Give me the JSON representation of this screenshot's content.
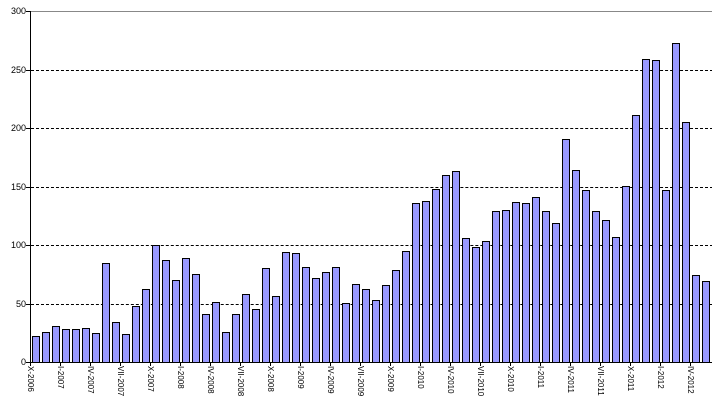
{
  "chart_data": {
    "type": "bar",
    "title": "",
    "xlabel": "",
    "ylabel": "",
    "legend": "none",
    "grid": "horizontal dashed black, solid gray line at 300 (top)",
    "ylim": [
      0,
      300
    ],
    "y_ticks": [
      0,
      50,
      100,
      150,
      200,
      250,
      300
    ],
    "bars_per_tick": 3,
    "x_tick_labels": [
      "X-2006",
      "I-2007",
      "IV-2007",
      "VII-2007",
      "X-2007",
      "I-2008",
      "IV-2008",
      "VII-2008",
      "X-2008",
      "I-2009",
      "IV-2009",
      "VII-2009",
      "X-2009",
      "I-2010",
      "IV-2010",
      "VII-2010",
      "X-2010",
      "I-2011",
      "IV-2011",
      "VII-2011",
      "X-2011",
      "I-2012",
      "IV-2012"
    ],
    "values": [
      22,
      26,
      31,
      28,
      28,
      29,
      25,
      85,
      34,
      24,
      48,
      62,
      100,
      87,
      70,
      89,
      75,
      41,
      51,
      26,
      41,
      58,
      45,
      80,
      56,
      94,
      93,
      81,
      72,
      77,
      81,
      50,
      67,
      62,
      53,
      66,
      79,
      95,
      136,
      138,
      148,
      160,
      163,
      106,
      98,
      103,
      129,
      130,
      137,
      136,
      141,
      129,
      119,
      191,
      164,
      147,
      129,
      121,
      107,
      150,
      211,
      259,
      258,
      147,
      273,
      205,
      74,
      69
    ],
    "colors": {
      "bar_fill": "#9999FF",
      "bar_border": "#000000",
      "gridline": "#000000",
      "top_line": "#888888",
      "axis": "#000000",
      "label_text": "#000000",
      "background": "#FFFFFF"
    }
  }
}
